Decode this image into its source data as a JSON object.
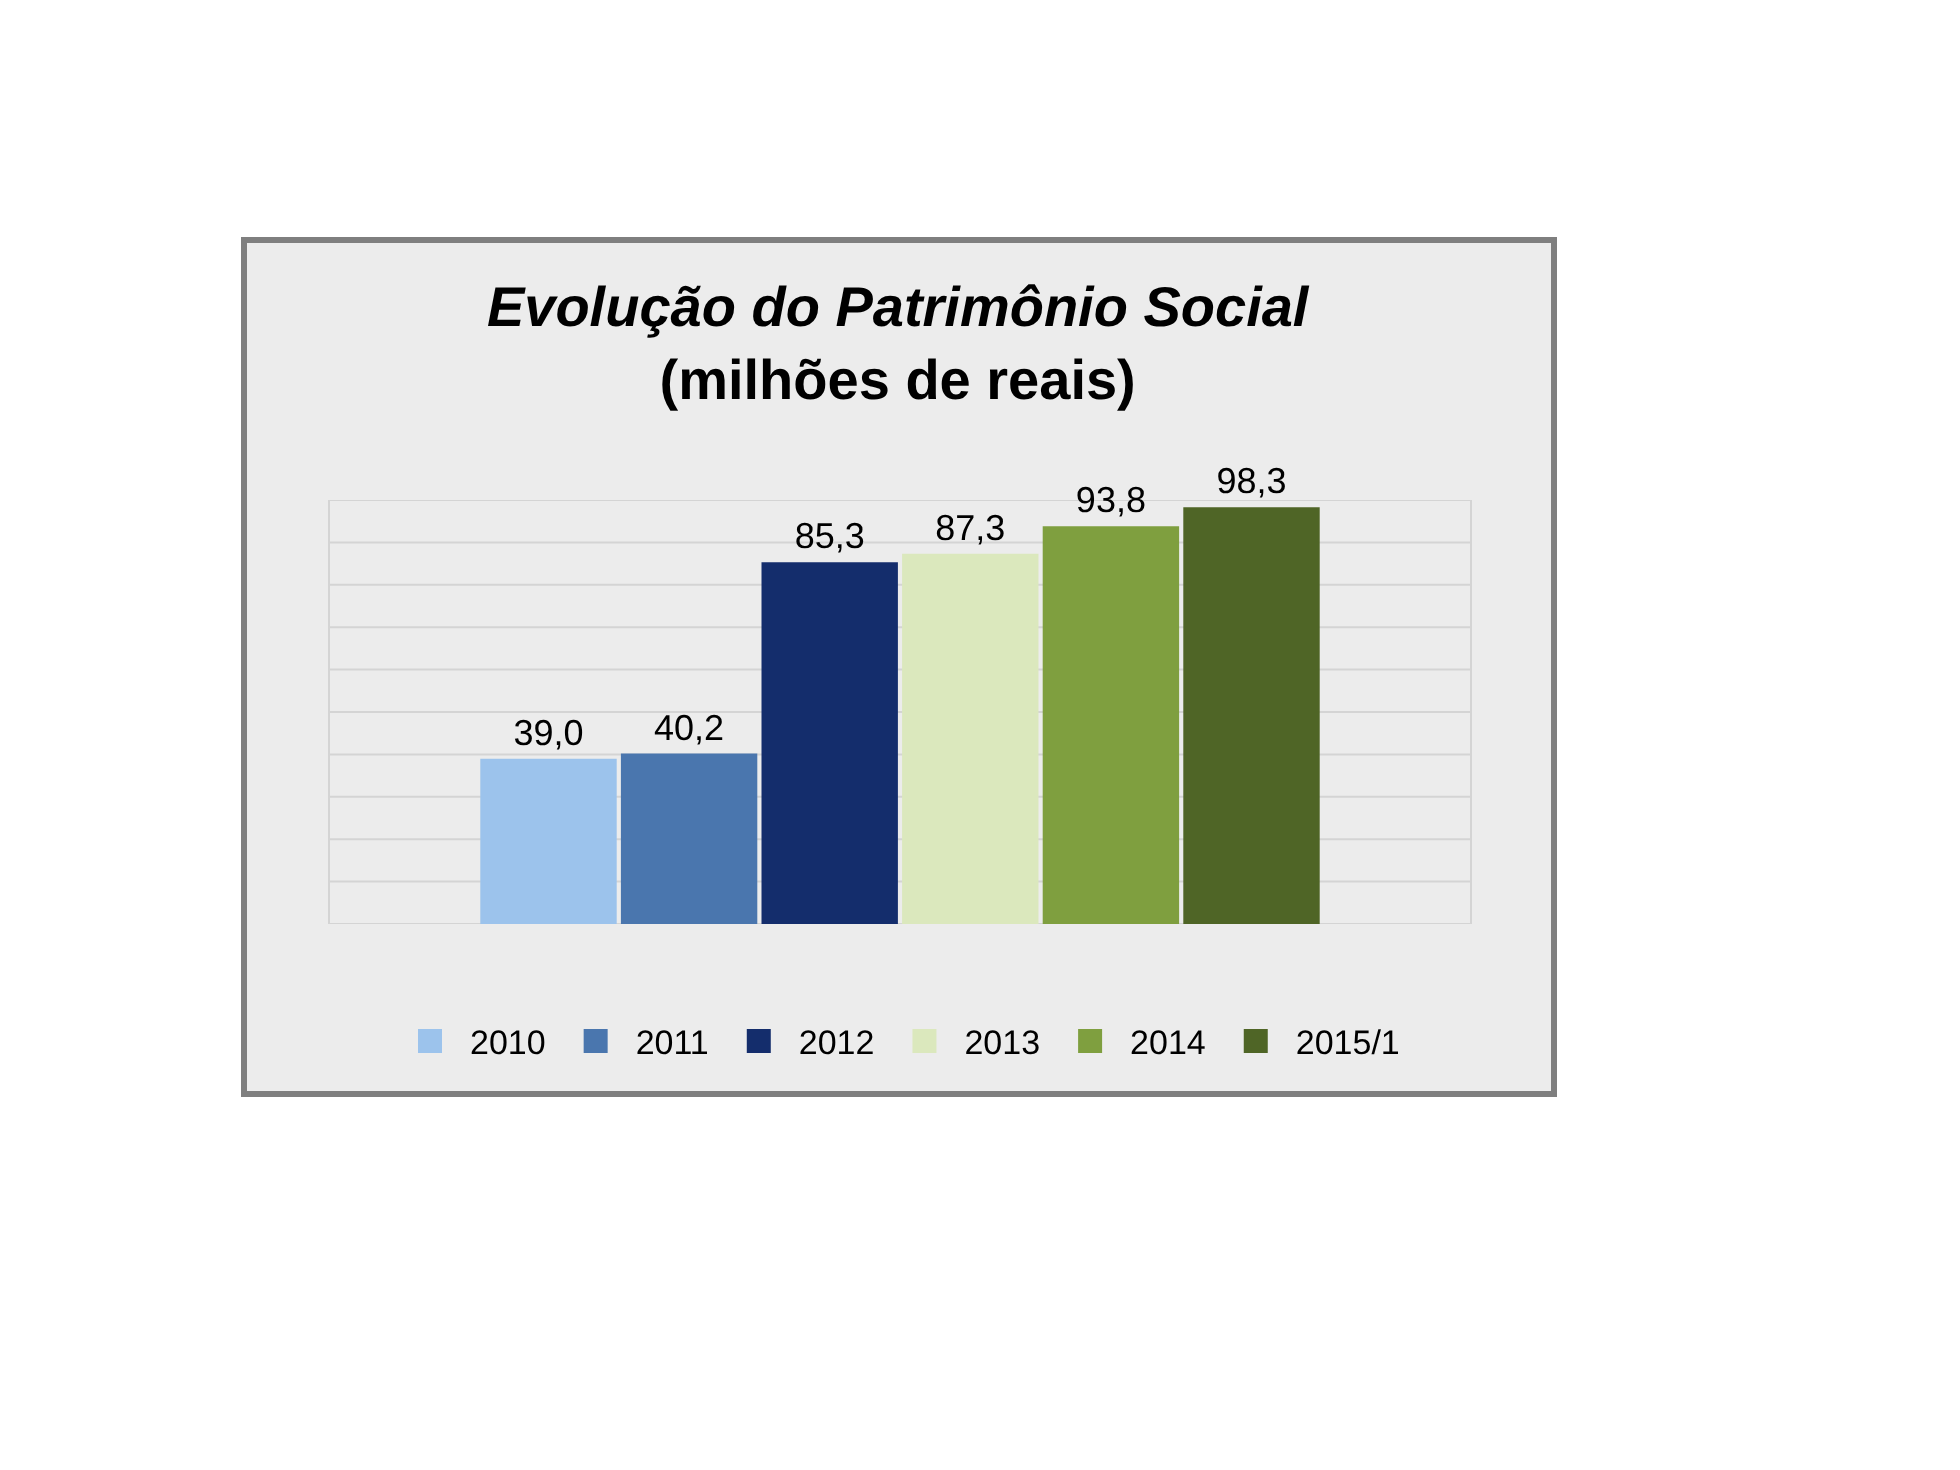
{
  "chart_data": {
    "type": "bar",
    "title": "Evolução do Patrimônio Social",
    "subtitle": "(milhões de reais)",
    "categories": [
      null
    ],
    "series": [
      {
        "name": "2010",
        "color": "#9cc3ec",
        "values": [
          39.0
        ],
        "value_labels": [
          "39,0"
        ]
      },
      {
        "name": "2011",
        "color": "#4a76ae",
        "values": [
          40.2
        ],
        "value_labels": [
          "40,2"
        ]
      },
      {
        "name": "2012",
        "color": "#142d6c",
        "values": [
          85.3
        ],
        "value_labels": [
          "85,3"
        ]
      },
      {
        "name": "2013",
        "color": "#dbe8bd",
        "values": [
          87.3
        ],
        "value_labels": [
          "87,3"
        ]
      },
      {
        "name": "2014",
        "color": "#7f9f3f",
        "values": [
          93.8
        ],
        "value_labels": [
          "93,8"
        ]
      },
      {
        "name": "2015/1",
        "color": "#4f6526",
        "values": [
          98.3
        ],
        "value_labels": [
          "98,3"
        ]
      }
    ],
    "ylim": [
      0,
      100
    ],
    "yticks": [
      {
        "value": 0,
        "label": null
      },
      {
        "value": 10,
        "label": null
      },
      {
        "value": 20,
        "label": null
      },
      {
        "value": 30,
        "label": null
      },
      {
        "value": 40,
        "label": null
      },
      {
        "value": 50,
        "label": null
      },
      {
        "value": 60,
        "label": null
      },
      {
        "value": 70,
        "label": null
      },
      {
        "value": 80,
        "label": null
      },
      {
        "value": 90,
        "label": null
      },
      {
        "value": 100,
        "label": null
      }
    ],
    "grid": "y",
    "legend": "bottom"
  }
}
